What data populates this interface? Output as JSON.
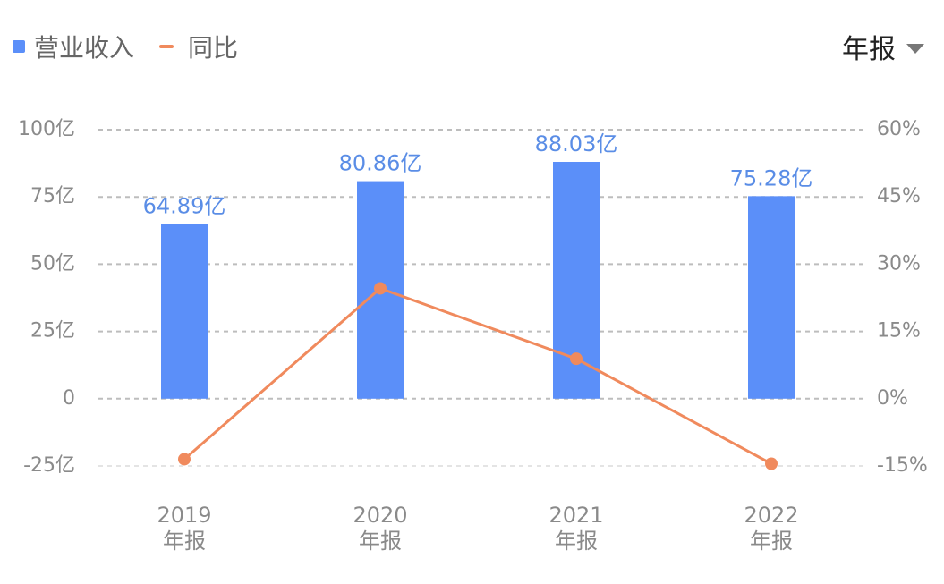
{
  "colors": {
    "bar": "#5b8ff9",
    "line": "#f08a5d",
    "grid": "#bdbdbd",
    "label": "#5a8de6"
  },
  "legend": {
    "revenue": "营业收入",
    "yoy": "同比"
  },
  "period_select": {
    "label": "年报",
    "icon": "chevron-down-icon"
  },
  "chart_data": {
    "type": "bar",
    "categories": [
      "2019\n年报",
      "2020\n年报",
      "2021\n年报",
      "2022\n年报"
    ],
    "series": [
      {
        "name": "营业收入",
        "type": "bar",
        "axis": "left",
        "values": [
          64.89,
          80.86,
          88.03,
          75.28
        ],
        "labels": [
          "64.89亿",
          "80.86亿",
          "88.03亿",
          "75.28亿"
        ]
      },
      {
        "name": "同比",
        "type": "line",
        "axis": "right",
        "values": [
          -13.5,
          24.6,
          8.9,
          -14.5
        ]
      }
    ],
    "y_left": {
      "min": -25,
      "max": 100,
      "ticks": [
        100,
        75,
        50,
        25,
        0,
        -25
      ],
      "tick_labels": [
        "100亿",
        "75亿",
        "50亿",
        "25亿",
        "0",
        "-25亿"
      ]
    },
    "y_right": {
      "min": -15,
      "max": 60,
      "ticks": [
        60,
        45,
        30,
        15,
        0,
        -15
      ],
      "tick_labels": [
        "60%",
        "45%",
        "30%",
        "15%",
        "0%",
        "-15%"
      ]
    },
    "grid": true,
    "legend_position": "top-left"
  }
}
